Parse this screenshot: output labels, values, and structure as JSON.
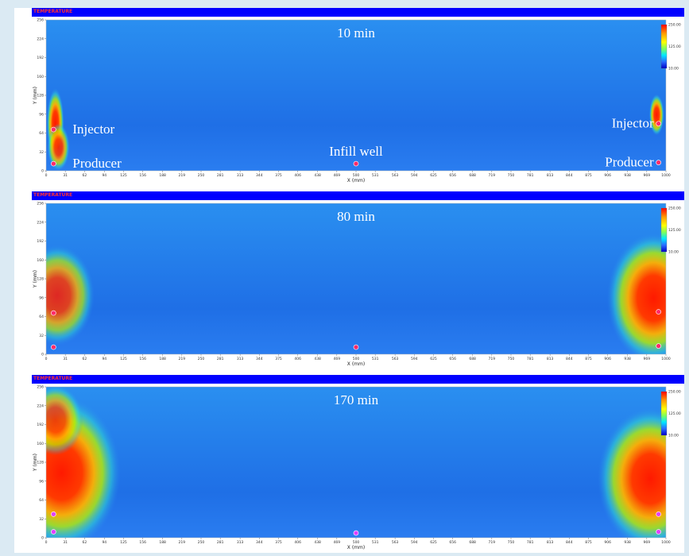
{
  "chart_data": [
    {
      "type": "heatmap",
      "panel_title": "TEMPERATURE",
      "time_label": "10 min",
      "xlabel": "X (mm)",
      "ylabel": "Y (mm)",
      "xticks": [
        "0",
        "31",
        "62",
        "94",
        "125",
        "156",
        "188",
        "219",
        "250",
        "281",
        "313",
        "344",
        "375",
        "406",
        "438",
        "469",
        "500",
        "531",
        "563",
        "594",
        "625",
        "656",
        "688",
        "719",
        "750",
        "781",
        "813",
        "844",
        "875",
        "906",
        "938",
        "969",
        "1000"
      ],
      "yticks": [
        "0",
        "32",
        "64",
        "96",
        "128",
        "160",
        "192",
        "224",
        "256"
      ],
      "colorbar_labels": [
        "250.00",
        "125.00",
        "10.00"
      ],
      "hot_zones": [
        {
          "x": 15,
          "y": 80,
          "rx": 14,
          "ry": 60,
          "intensity": 1.0
        },
        {
          "x": 20,
          "y": 40,
          "rx": 18,
          "ry": 40,
          "intensity": 0.9
        },
        {
          "x": 985,
          "y": 95,
          "rx": 12,
          "ry": 35,
          "intensity": 1.0
        }
      ],
      "wells": [
        {
          "name": "Injector",
          "x": 12,
          "y": 70,
          "label_side": "right"
        },
        {
          "name": "Producer",
          "x": 12,
          "y": 12,
          "label_side": "right"
        },
        {
          "name": "Infill well",
          "x": 500,
          "y": 12,
          "label_side": "above"
        },
        {
          "name": "Injector",
          "x": 988,
          "y": 80,
          "label_side": "left"
        },
        {
          "name": "Producer",
          "x": 988,
          "y": 14,
          "label_side": "left"
        }
      ],
      "dot_color": "#ff2a6a"
    },
    {
      "type": "heatmap",
      "panel_title": "TEMPERATURE",
      "time_label": "80 min",
      "xlabel": "X (mm)",
      "ylabel": "Y (mm)",
      "xticks": [
        "0",
        "31",
        "62",
        "94",
        "125",
        "156",
        "188",
        "219",
        "250",
        "281",
        "313",
        "344",
        "375",
        "406",
        "438",
        "469",
        "500",
        "531",
        "563",
        "594",
        "625",
        "656",
        "688",
        "719",
        "750",
        "781",
        "813",
        "844",
        "875",
        "906",
        "938",
        "969",
        "1000"
      ],
      "yticks": [
        "0",
        "32",
        "64",
        "96",
        "128",
        "160",
        "192",
        "224",
        "256"
      ],
      "colorbar_labels": [
        "250.00",
        "125.00",
        "10.00"
      ],
      "hot_zones": [
        {
          "x": 18,
          "y": 100,
          "rx": 60,
          "ry": 85,
          "intensity": 0.85
        },
        {
          "x": 980,
          "y": 95,
          "rx": 75,
          "ry": 110,
          "intensity": 1.0
        }
      ],
      "wells": [
        {
          "name": "",
          "x": 12,
          "y": 70,
          "label_side": "none"
        },
        {
          "name": "",
          "x": 12,
          "y": 12,
          "label_side": "none"
        },
        {
          "name": "",
          "x": 500,
          "y": 12,
          "label_side": "none"
        },
        {
          "name": "",
          "x": 988,
          "y": 72,
          "label_side": "none"
        },
        {
          "name": "",
          "x": 988,
          "y": 14,
          "label_side": "none"
        }
      ],
      "dot_color": "#ff2a6a"
    },
    {
      "type": "heatmap",
      "panel_title": "TEMPERATURE",
      "time_label": "170 min",
      "xlabel": "X (mm)",
      "ylabel": "Y (mm)",
      "xticks": [
        "0",
        "31",
        "62",
        "94",
        "125",
        "156",
        "188",
        "219",
        "250",
        "281",
        "313",
        "344",
        "375",
        "406",
        "438",
        "469",
        "500",
        "531",
        "563",
        "594",
        "625",
        "656",
        "688",
        "719",
        "750",
        "781",
        "813",
        "844",
        "875",
        "906",
        "938",
        "969",
        "1000"
      ],
      "yticks": [
        "0",
        "32",
        "64",
        "96",
        "128",
        "160",
        "192",
        "224",
        "256"
      ],
      "colorbar_labels": [
        "250.00",
        "125.00",
        "10.00"
      ],
      "hot_zones": [
        {
          "x": 25,
          "y": 110,
          "rx": 95,
          "ry": 130,
          "intensity": 1.0
        },
        {
          "x": 15,
          "y": 200,
          "rx": 45,
          "ry": 60,
          "intensity": 0.8
        },
        {
          "x": 975,
          "y": 100,
          "rx": 85,
          "ry": 120,
          "intensity": 1.0
        }
      ],
      "wells": [
        {
          "name": "",
          "x": 12,
          "y": 40,
          "label_side": "none"
        },
        {
          "name": "",
          "x": 12,
          "y": 10,
          "label_side": "none"
        },
        {
          "name": "",
          "x": 500,
          "y": 8,
          "label_side": "none"
        },
        {
          "name": "",
          "x": 988,
          "y": 40,
          "label_side": "none"
        },
        {
          "name": "",
          "x": 988,
          "y": 10,
          "label_side": "none"
        }
      ],
      "dot_color": "#e040ff"
    }
  ]
}
